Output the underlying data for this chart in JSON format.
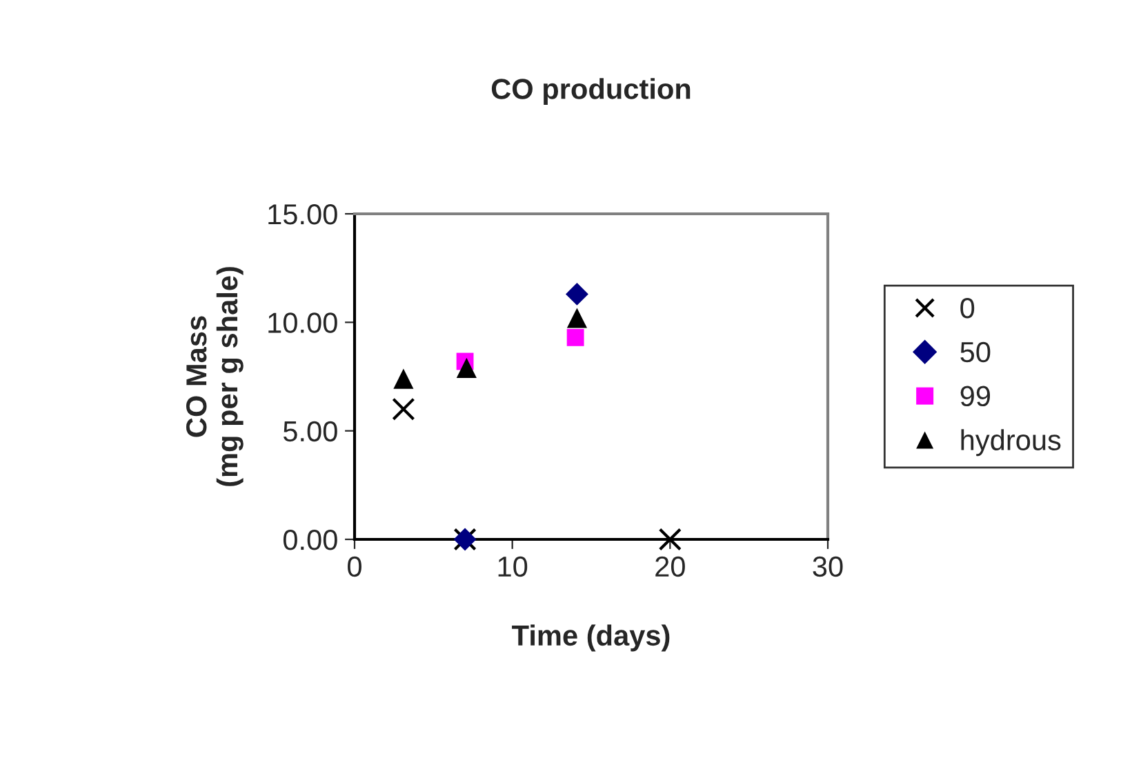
{
  "chart_data": {
    "type": "scatter",
    "title": "CO production",
    "xlabel": "Time (days)",
    "ylabel": "CO Mass\n(mg per g shale)",
    "xlim": [
      0,
      30
    ],
    "xticks": [
      0,
      10,
      20,
      30
    ],
    "ylim": [
      0,
      15
    ],
    "yticks": [
      {
        "value": 0,
        "label": "0.00"
      },
      {
        "value": 5,
        "label": "5.00"
      },
      {
        "value": 10,
        "label": "10.00"
      },
      {
        "value": 15,
        "label": "15.00"
      }
    ],
    "grid": false,
    "legend": "right",
    "series": [
      {
        "name": "0",
        "color": "#000000",
        "marker": "cross",
        "x": [
          3.1,
          7,
          20
        ],
        "values": [
          6.0,
          0,
          0
        ]
      },
      {
        "name": "50",
        "color": "#000080",
        "marker": "diamond",
        "x": [
          7,
          14.1
        ],
        "values": [
          0,
          11.3
        ]
      },
      {
        "name": "99",
        "color": "#ff00ff",
        "marker": "square",
        "x": [
          7,
          14
        ],
        "values": [
          8.2,
          9.3
        ]
      },
      {
        "name": "hydrous",
        "color": "#000000",
        "marker": "triangle",
        "x": [
          3.1,
          7.1,
          14.1
        ],
        "values": [
          7.4,
          7.9,
          10.2
        ]
      }
    ]
  }
}
